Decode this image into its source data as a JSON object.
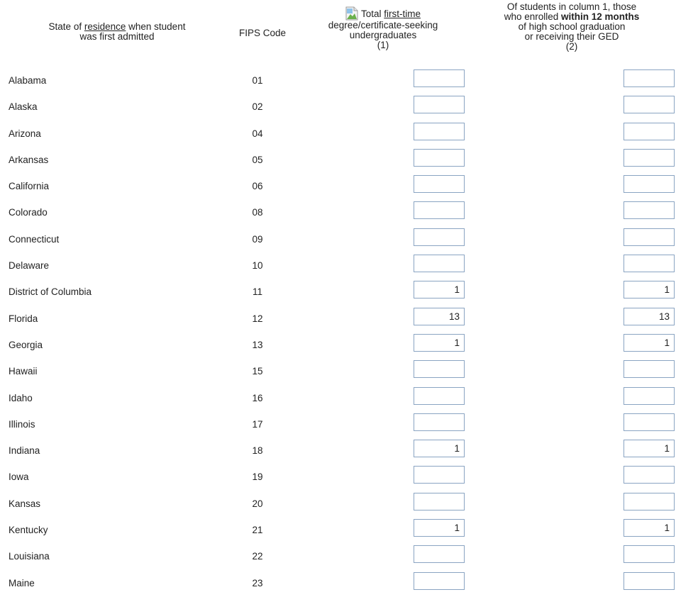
{
  "headers": {
    "state_prefix": "State of ",
    "state_underlined": "residence",
    "state_suffix": " when student",
    "state_line2": "was first admitted",
    "fips": "FIPS Code",
    "total_prefix": "Total ",
    "total_underlined": "first-time",
    "total_line2": "degree/certificate-seeking",
    "total_line3": "undergraduates",
    "total_num": "(1)",
    "within_line1": "Of students in column 1, those",
    "within_line2_prefix": "who enrolled ",
    "within_line2_bold": "within 12 months",
    "within_line3": "of high school graduation",
    "within_line4": "or receiving their GED",
    "within_num": "(2)"
  },
  "icons": {
    "broken_image": "broken-image-icon"
  },
  "rows": [
    {
      "state": "Alabama",
      "fips": "01",
      "total": "",
      "within": ""
    },
    {
      "state": "Alaska",
      "fips": "02",
      "total": "",
      "within": ""
    },
    {
      "state": "Arizona",
      "fips": "04",
      "total": "",
      "within": ""
    },
    {
      "state": "Arkansas",
      "fips": "05",
      "total": "",
      "within": ""
    },
    {
      "state": "California",
      "fips": "06",
      "total": "",
      "within": ""
    },
    {
      "state": "Colorado",
      "fips": "08",
      "total": "",
      "within": ""
    },
    {
      "state": "Connecticut",
      "fips": "09",
      "total": "",
      "within": ""
    },
    {
      "state": "Delaware",
      "fips": "10",
      "total": "",
      "within": ""
    },
    {
      "state": "District of Columbia",
      "fips": "11",
      "total": "1",
      "within": "1"
    },
    {
      "state": "Florida",
      "fips": "12",
      "total": "13",
      "within": "13"
    },
    {
      "state": "Georgia",
      "fips": "13",
      "total": "1",
      "within": "1"
    },
    {
      "state": "Hawaii",
      "fips": "15",
      "total": "",
      "within": ""
    },
    {
      "state": "Idaho",
      "fips": "16",
      "total": "",
      "within": ""
    },
    {
      "state": "Illinois",
      "fips": "17",
      "total": "",
      "within": ""
    },
    {
      "state": "Indiana",
      "fips": "18",
      "total": "1",
      "within": "1"
    },
    {
      "state": "Iowa",
      "fips": "19",
      "total": "",
      "within": ""
    },
    {
      "state": "Kansas",
      "fips": "20",
      "total": "",
      "within": ""
    },
    {
      "state": "Kentucky",
      "fips": "21",
      "total": "1",
      "within": "1"
    },
    {
      "state": "Louisiana",
      "fips": "22",
      "total": "",
      "within": ""
    },
    {
      "state": "Maine",
      "fips": "23",
      "total": "",
      "within": ""
    }
  ]
}
